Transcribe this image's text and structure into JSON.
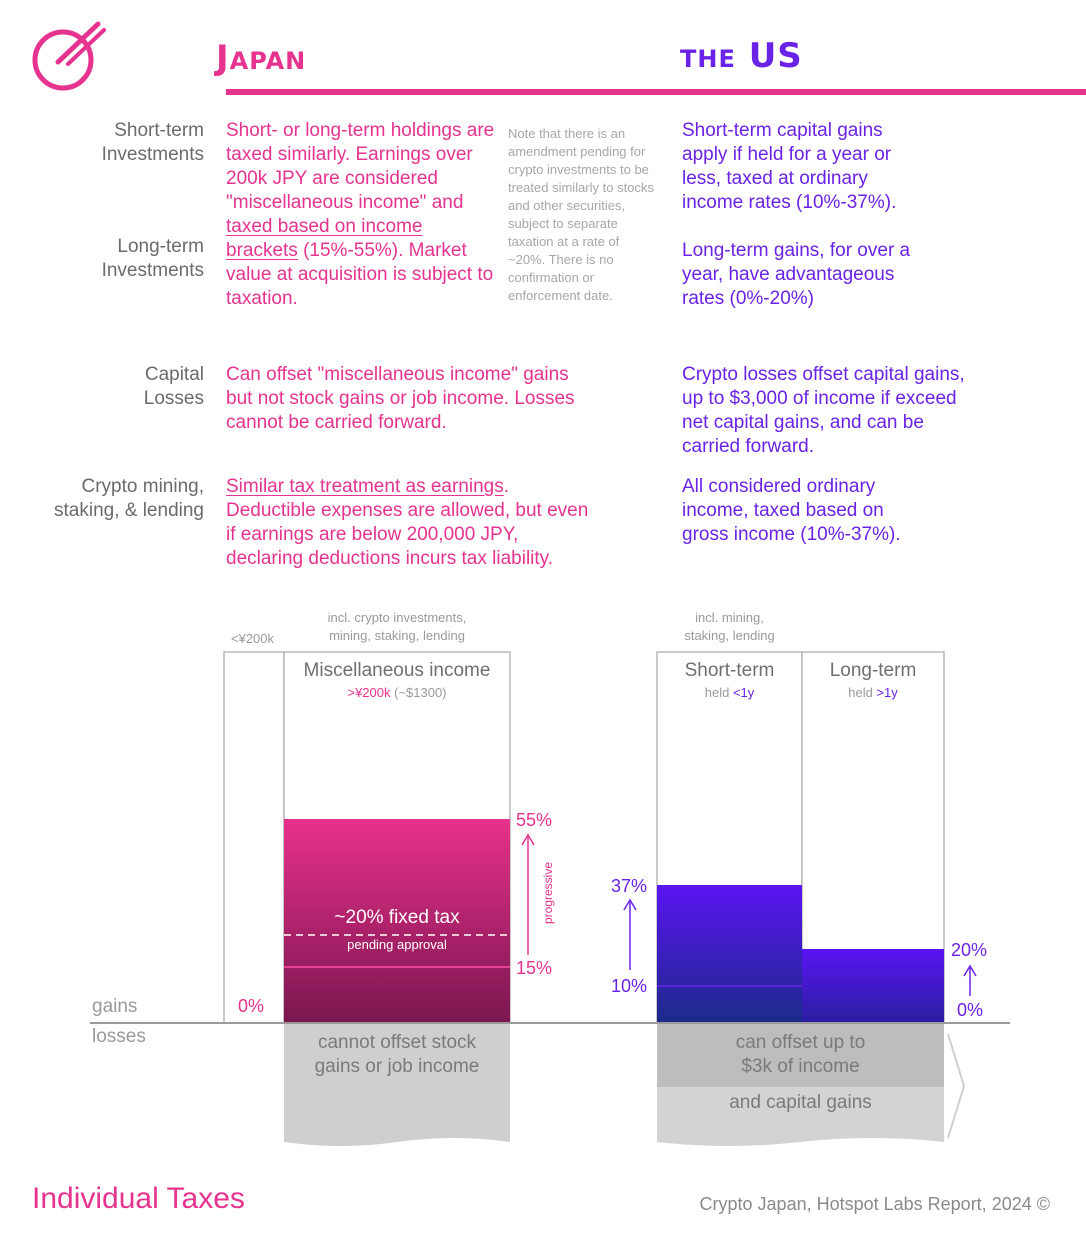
{
  "headers": {
    "japan": "Japan",
    "us": "the US"
  },
  "rows": {
    "short_term_label": "Short-term\nInvestments",
    "long_term_label": "Long-term\nInvestments",
    "capital_losses_label": "Capital\nLosses",
    "mining_label": "Crypto mining,\nstaking, & lending"
  },
  "japan": {
    "investments_a": "Short- or long-term holdings are taxed similarly. Earnings over 200k JPY are considered \"miscellaneous income\" and ",
    "investments_link": "taxed based on income brackets",
    "investments_b": " (15%-55%). Market value at acquisition is subject to taxation.",
    "losses": "Can offset \"miscellaneous income\" gains but not stock gains or job income. Losses cannot be carried forward.",
    "mining_link": "Similar tax treatment as earnings",
    "mining_b": ". Deductible expenses are allowed, but even if earnings are below 200,000 JPY, declaring deductions incurs tax liability."
  },
  "note": "Note that there is an amendment pending for crypto investments to be treated similarly to stocks and other securities, subject to separate taxation at a rate of ~20%. There is no confirmation or enforcement date.",
  "us": {
    "short_term": "Short-term capital gains apply if held for a year or less, taxed at ordinary income rates (10%-37%).",
    "long_term": "Long-term gains, for over a year, have advantageous rates (0%-20%)",
    "losses": "Crypto losses offset capital gains, up to $3,000 of income if exceed net capital gains, and can be carried forward.",
    "mining": "All considered ordinary income, taxed based on gross income (10%-37%)."
  },
  "chart": {
    "jp_under_label": "<¥200k",
    "jp_misc_note": "incl. crypto investments,\nmining, staking, lending",
    "jp_misc_title": "Miscellaneous income",
    "jp_misc_threshold": ">¥200k",
    "jp_misc_usd": " (~$1300)",
    "jp_zero": "0%",
    "jp_max": "55%",
    "jp_min": "15%",
    "progressive": "progressive",
    "fixed_tax": "~20% fixed tax",
    "pending": "pending approval",
    "jp_losses": "cannot offset stock\ngains or job income",
    "us_note": "incl. mining,\nstaking, lending",
    "us_short_title": "Short-term",
    "us_short_held": "held ",
    "us_short_period": "<1y",
    "us_long_title": "Long-term",
    "us_long_held": "held ",
    "us_long_period": ">1y",
    "us_short_max": "37%",
    "us_short_min": "10%",
    "us_long_max": "20%",
    "us_long_min": "0%",
    "us_losses_1": "can offset up to\n$3k of income",
    "us_losses_2": "and capital gains",
    "gains": "gains",
    "losses": "losses",
    "colors": {
      "pink": "#e6338f",
      "purple": "#6a23e6",
      "dark_blue": "#1a2a80",
      "maroon": "#7a1650"
    }
  },
  "footer": {
    "title": "Individual Taxes",
    "credit": "Crypto Japan, Hotspot Labs Report, 2024 ©"
  }
}
